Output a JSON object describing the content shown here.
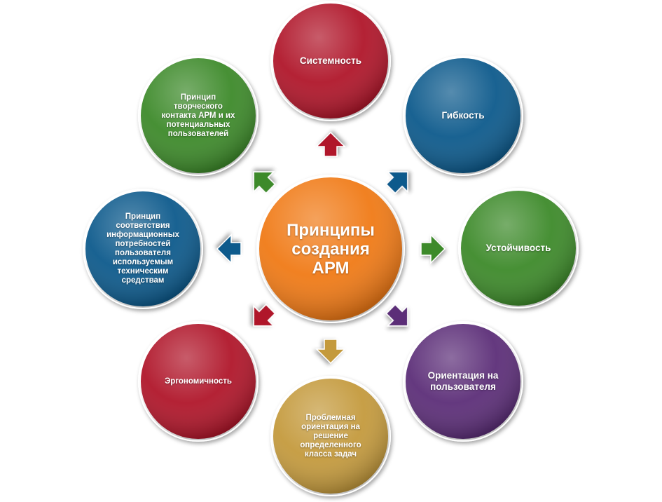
{
  "center": {
    "label": "Принципы\nсоздания\nАРМ"
  },
  "nodes": [
    {
      "id": "sistemnost",
      "label": "Системность",
      "color": "#b0152a"
    },
    {
      "id": "gibkost",
      "label": "Гибкость",
      "color": "#0c5a8c"
    },
    {
      "id": "ustoychivost",
      "label": "Устойчивость",
      "color": "#3e8a2a"
    },
    {
      "id": "orientatsiya-polzovatelya",
      "label": "Ориентация на\nпользователя",
      "color": "#5b2e78"
    },
    {
      "id": "problemnaya-orientatsiya",
      "label": "Проблемная\nориентация  на\nрешение\nопределенного\nкласса задач",
      "color": "#c49a3e"
    },
    {
      "id": "ergonomichnost",
      "label": "Эргономичность",
      "color": "#b0152a"
    },
    {
      "id": "sootvetstvie",
      "label": "Принцип\nсоответствия\nинформационных\nпотребностей\nпользователя\nиспользуемым\nтехническим\nсредствам",
      "color": "#0c5a8c"
    },
    {
      "id": "tvorcheskiy-kontakt",
      "label": "Принцип\nтворческого\nконтакта АРМ и их\nпотенциальных\nпользователей",
      "color": "#3e8a2a"
    }
  ],
  "center_color": "#f07a12"
}
